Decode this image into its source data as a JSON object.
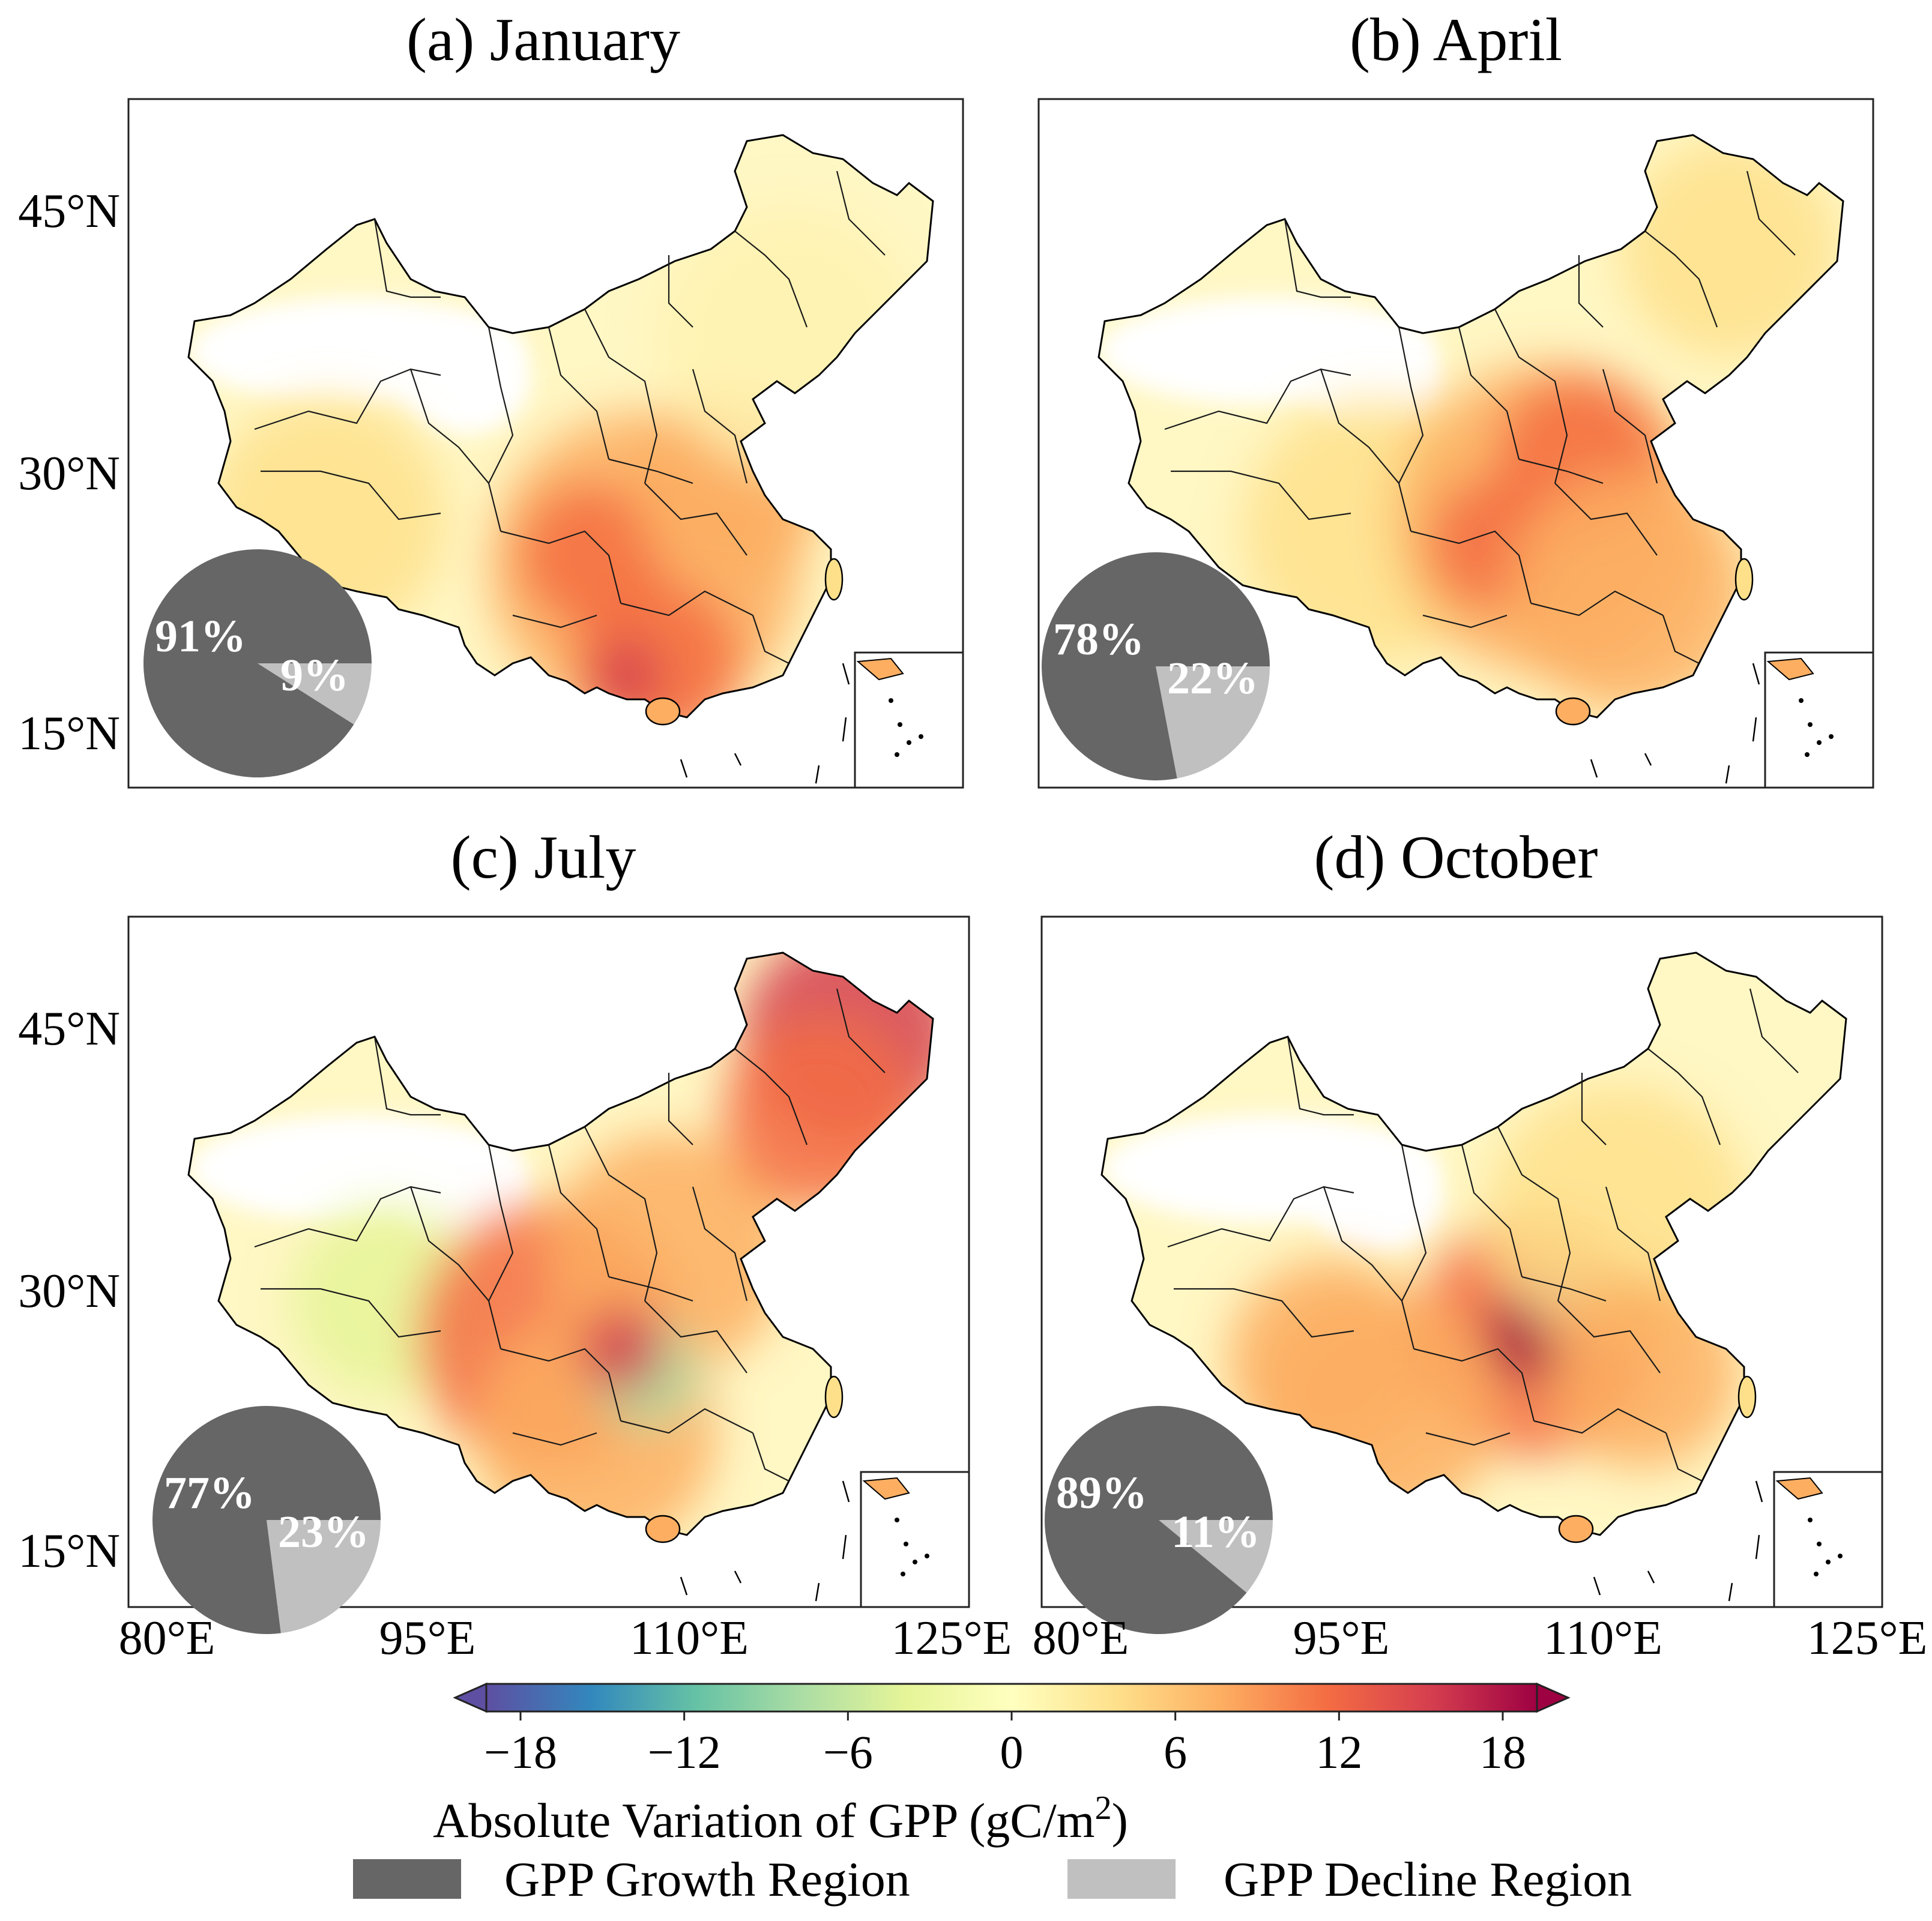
{
  "panels": [
    {
      "title": "(a) January",
      "growth_label": "91%",
      "decline_label": "9%"
    },
    {
      "title": "(b) April",
      "growth_label": "78%",
      "decline_label": "22%"
    },
    {
      "title": "(c) July",
      "growth_label": "77%",
      "decline_label": "23%"
    },
    {
      "title": "(d) October",
      "growth_label": "89%",
      "decline_label": "11%"
    }
  ],
  "axes": {
    "lat_labels": [
      "45°N",
      "30°N",
      "15°N"
    ],
    "lon_labels": [
      "80°E",
      "95°E",
      "110°E",
      "125°E"
    ]
  },
  "colorbar": {
    "ticks": [
      "−18",
      "−12",
      "−6",
      "0",
      "6",
      "12",
      "18"
    ],
    "label_main": "Absolute Variation of GPP (gC/m",
    "label_sup": "2",
    "label_end": ")",
    "colors": [
      "#5e4fa2",
      "#3288bd",
      "#66c2a5",
      "#abdda4",
      "#e6f598",
      "#ffffbf",
      "#fee08b",
      "#fdae61",
      "#f46d43",
      "#d53e4f",
      "#9e0142"
    ]
  },
  "legend": {
    "growth": {
      "label": "GPP Growth Region",
      "color": "#666666"
    },
    "decline": {
      "label": "GPP Decline Region",
      "color": "#c0c0c0"
    }
  },
  "chart_data": {
    "type": "pie",
    "description_series": "Share of area with GPP growth vs decline per month",
    "categories": [
      "GPP Growth Region",
      "GPP Decline Region"
    ],
    "series": [
      {
        "name": "(a) January",
        "values": [
          91,
          9
        ]
      },
      {
        "name": "(b) April",
        "values": [
          78,
          22
        ]
      },
      {
        "name": "(c) July",
        "values": [
          77,
          23
        ]
      },
      {
        "name": "(d) October",
        "values": [
          89,
          11
        ]
      }
    ],
    "colorbar_range": [
      -18,
      18
    ],
    "lat_ticks": [
      45,
      30,
      15
    ],
    "lon_ticks": [
      80,
      95,
      110,
      125
    ]
  }
}
